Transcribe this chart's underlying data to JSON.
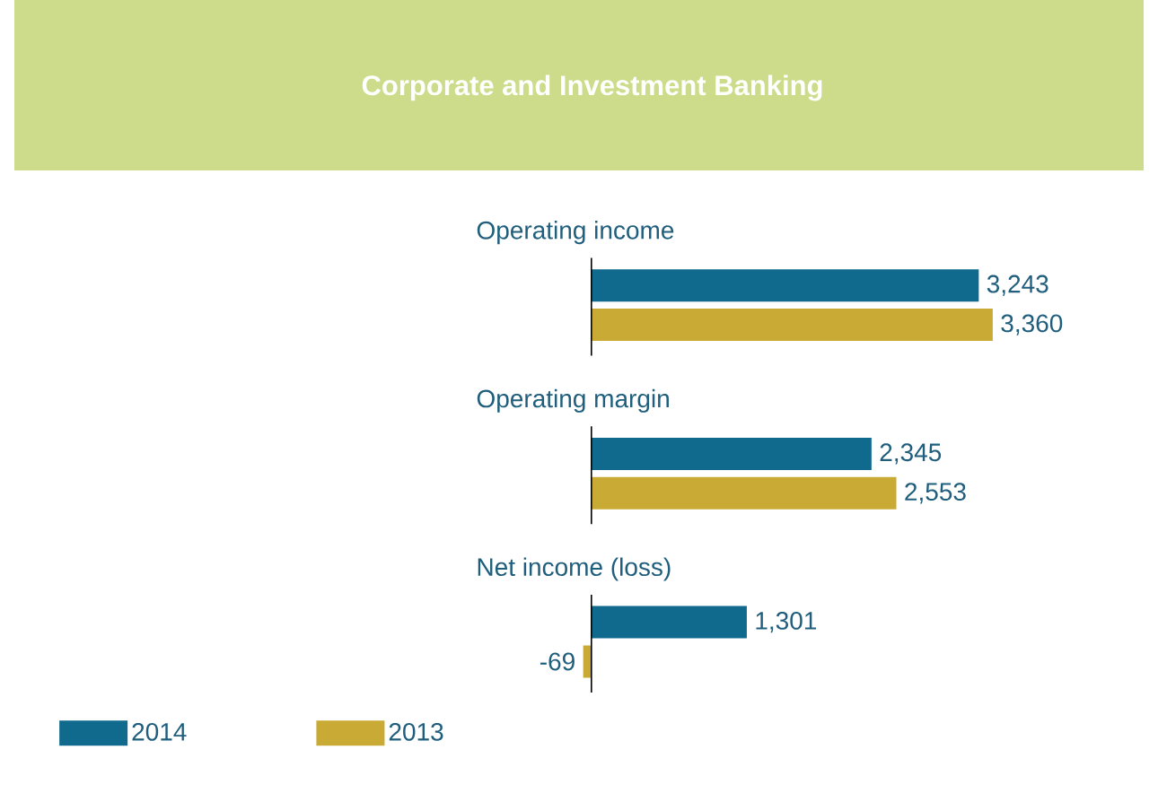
{
  "chart_data": {
    "type": "bar",
    "orientation": "horizontal",
    "title": "Corporate and Investment Banking",
    "categories": [
      "Operating income",
      "Operating margin",
      "Net income (loss)"
    ],
    "series": [
      {
        "name": "2014",
        "color": "#0f6a8e",
        "values": [
          3243,
          2345,
          1301
        ],
        "value_labels": [
          "3,243",
          "2,345",
          "1,301"
        ]
      },
      {
        "name": "2013",
        "color": "#c9aa35",
        "values": [
          3360,
          2553,
          -69
        ],
        "value_labels": [
          "3,360",
          "2,553",
          "-69"
        ]
      }
    ],
    "ref_lines": [
      {
        "axis": "x",
        "value": 0,
        "color": "#000000"
      }
    ],
    "legend": "bottom left"
  }
}
